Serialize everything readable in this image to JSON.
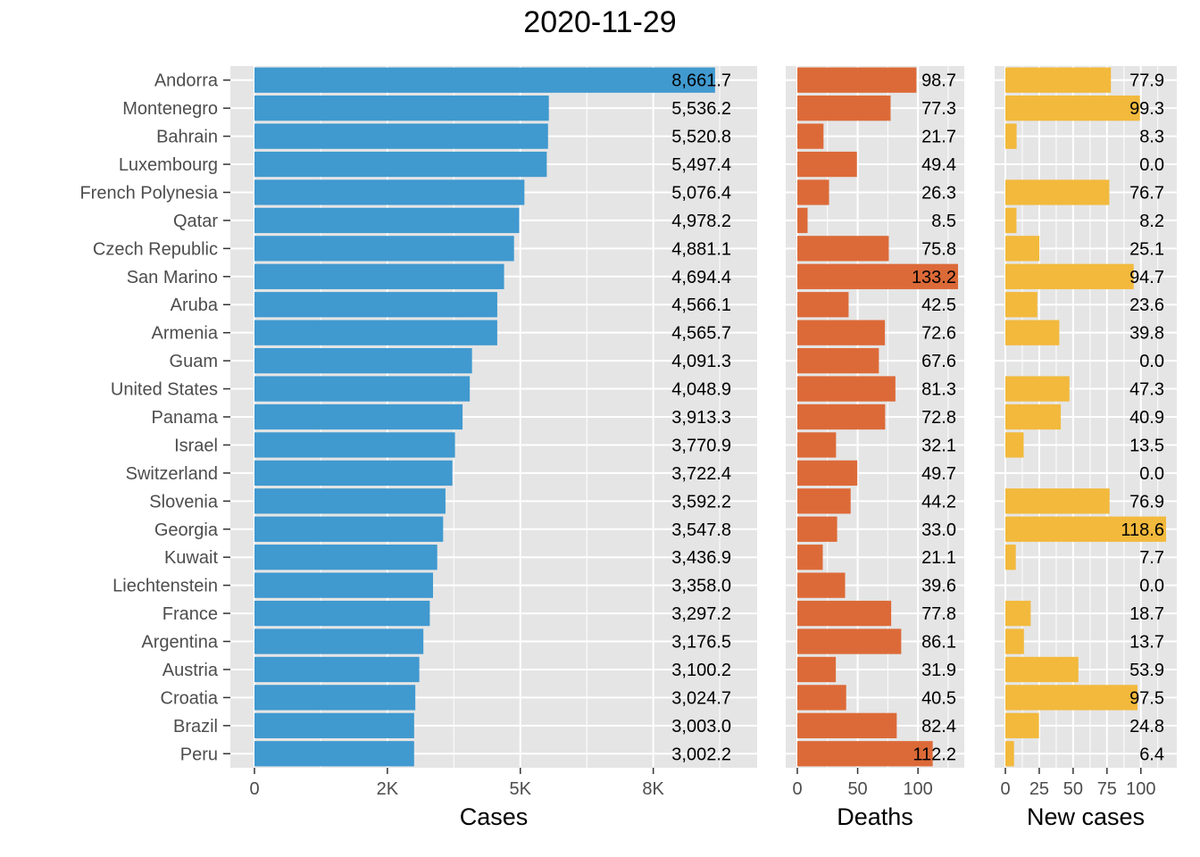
{
  "title": "2020-11-29",
  "colors": {
    "panel_bg": "#e5e5e5",
    "grid": "#ffffff",
    "cases": "#4099cf",
    "deaths": "#dc6a38",
    "new_cases": "#f2b93c",
    "axis_text": "#4d4d4d"
  },
  "chart_data": [
    {
      "type": "bar",
      "orientation": "horizontal",
      "title": "2020-11-29",
      "xlabel": "Cases",
      "categories": [
        "Andorra",
        "Montenegro",
        "Bahrain",
        "Luxembourg",
        "French Polynesia",
        "Qatar",
        "Czech Republic",
        "San Marino",
        "Aruba",
        "Armenia",
        "Guam",
        "United States",
        "Panama",
        "Israel",
        "Switzerland",
        "Slovenia",
        "Georgia",
        "Kuwait",
        "Liechtenstein",
        "France",
        "Argentina",
        "Austria",
        "Croatia",
        "Brazil",
        "Peru"
      ],
      "values": [
        8661.7,
        5536.2,
        5520.8,
        5497.4,
        5076.4,
        4978.2,
        4881.1,
        4694.4,
        4566.1,
        4565.7,
        4091.3,
        4048.9,
        3913.3,
        3770.9,
        3722.4,
        3592.2,
        3547.8,
        3436.9,
        3358.0,
        3297.2,
        3176.5,
        3100.2,
        3024.7,
        3003.0,
        3002.2
      ],
      "value_labels": [
        "8,661.7",
        "5,536.2",
        "5,520.8",
        "5,497.4",
        "5,076.4",
        "4,978.2",
        "4,881.1",
        "4,694.4",
        "4,566.1",
        "4,565.7",
        "4,091.3",
        "4,048.9",
        "3,913.3",
        "3,770.9",
        "3,722.4",
        "3,592.2",
        "3,547.8",
        "3,436.9",
        "3,358.0",
        "3,297.2",
        "3,176.5",
        "3,100.2",
        "3,024.7",
        "3,003.0",
        "3,002.2"
      ],
      "xlim": [
        0,
        9000
      ],
      "ticks": [
        0,
        2500,
        5000,
        7500
      ],
      "tick_labels": [
        "0",
        "2K",
        "5K",
        "8K"
      ],
      "grid": true
    },
    {
      "type": "bar",
      "orientation": "horizontal",
      "xlabel": "Deaths",
      "values": [
        98.7,
        77.3,
        21.7,
        49.4,
        26.3,
        8.5,
        75.8,
        133.2,
        42.5,
        72.6,
        67.6,
        81.3,
        72.8,
        32.1,
        49.7,
        44.2,
        33.0,
        21.1,
        39.6,
        77.8,
        86.1,
        31.9,
        40.5,
        82.4,
        112.2
      ],
      "value_labels": [
        "98.7",
        "77.3",
        "21.7",
        "49.4",
        "26.3",
        "8.5",
        "75.8",
        "133.2",
        "42.5",
        "72.6",
        "67.6",
        "81.3",
        "72.8",
        "32.1",
        "49.7",
        "44.2",
        "33.0",
        "21.1",
        "39.6",
        "77.8",
        "86.1",
        "31.9",
        "40.5",
        "82.4",
        "112.2"
      ],
      "xlim": [
        0,
        133.2
      ],
      "ticks": [
        0,
        50,
        100
      ],
      "tick_labels": [
        "0",
        "50",
        "100"
      ],
      "grid": true
    },
    {
      "type": "bar",
      "orientation": "horizontal",
      "xlabel": "New cases",
      "values": [
        77.9,
        99.3,
        8.3,
        0.0,
        76.7,
        8.2,
        25.1,
        94.7,
        23.6,
        39.8,
        0.0,
        47.3,
        40.9,
        13.5,
        0.0,
        76.9,
        118.6,
        7.7,
        0.0,
        18.7,
        13.7,
        53.9,
        97.5,
        24.8,
        6.4
      ],
      "value_labels": [
        "77.9",
        "99.3",
        "8.3",
        "0.0",
        "76.7",
        "8.2",
        "25.1",
        "94.7",
        "23.6",
        "39.8",
        "0.0",
        "47.3",
        "40.9",
        "13.5",
        "0.0",
        "76.9",
        "118.6",
        "7.7",
        "0.0",
        "18.7",
        "13.7",
        "53.9",
        "97.5",
        "24.8",
        "6.4"
      ],
      "xlim": [
        0,
        118.6
      ],
      "ticks": [
        0,
        25,
        50,
        75,
        100
      ],
      "tick_labels": [
        "0",
        "25",
        "50",
        "75",
        "100"
      ],
      "grid": true
    }
  ]
}
